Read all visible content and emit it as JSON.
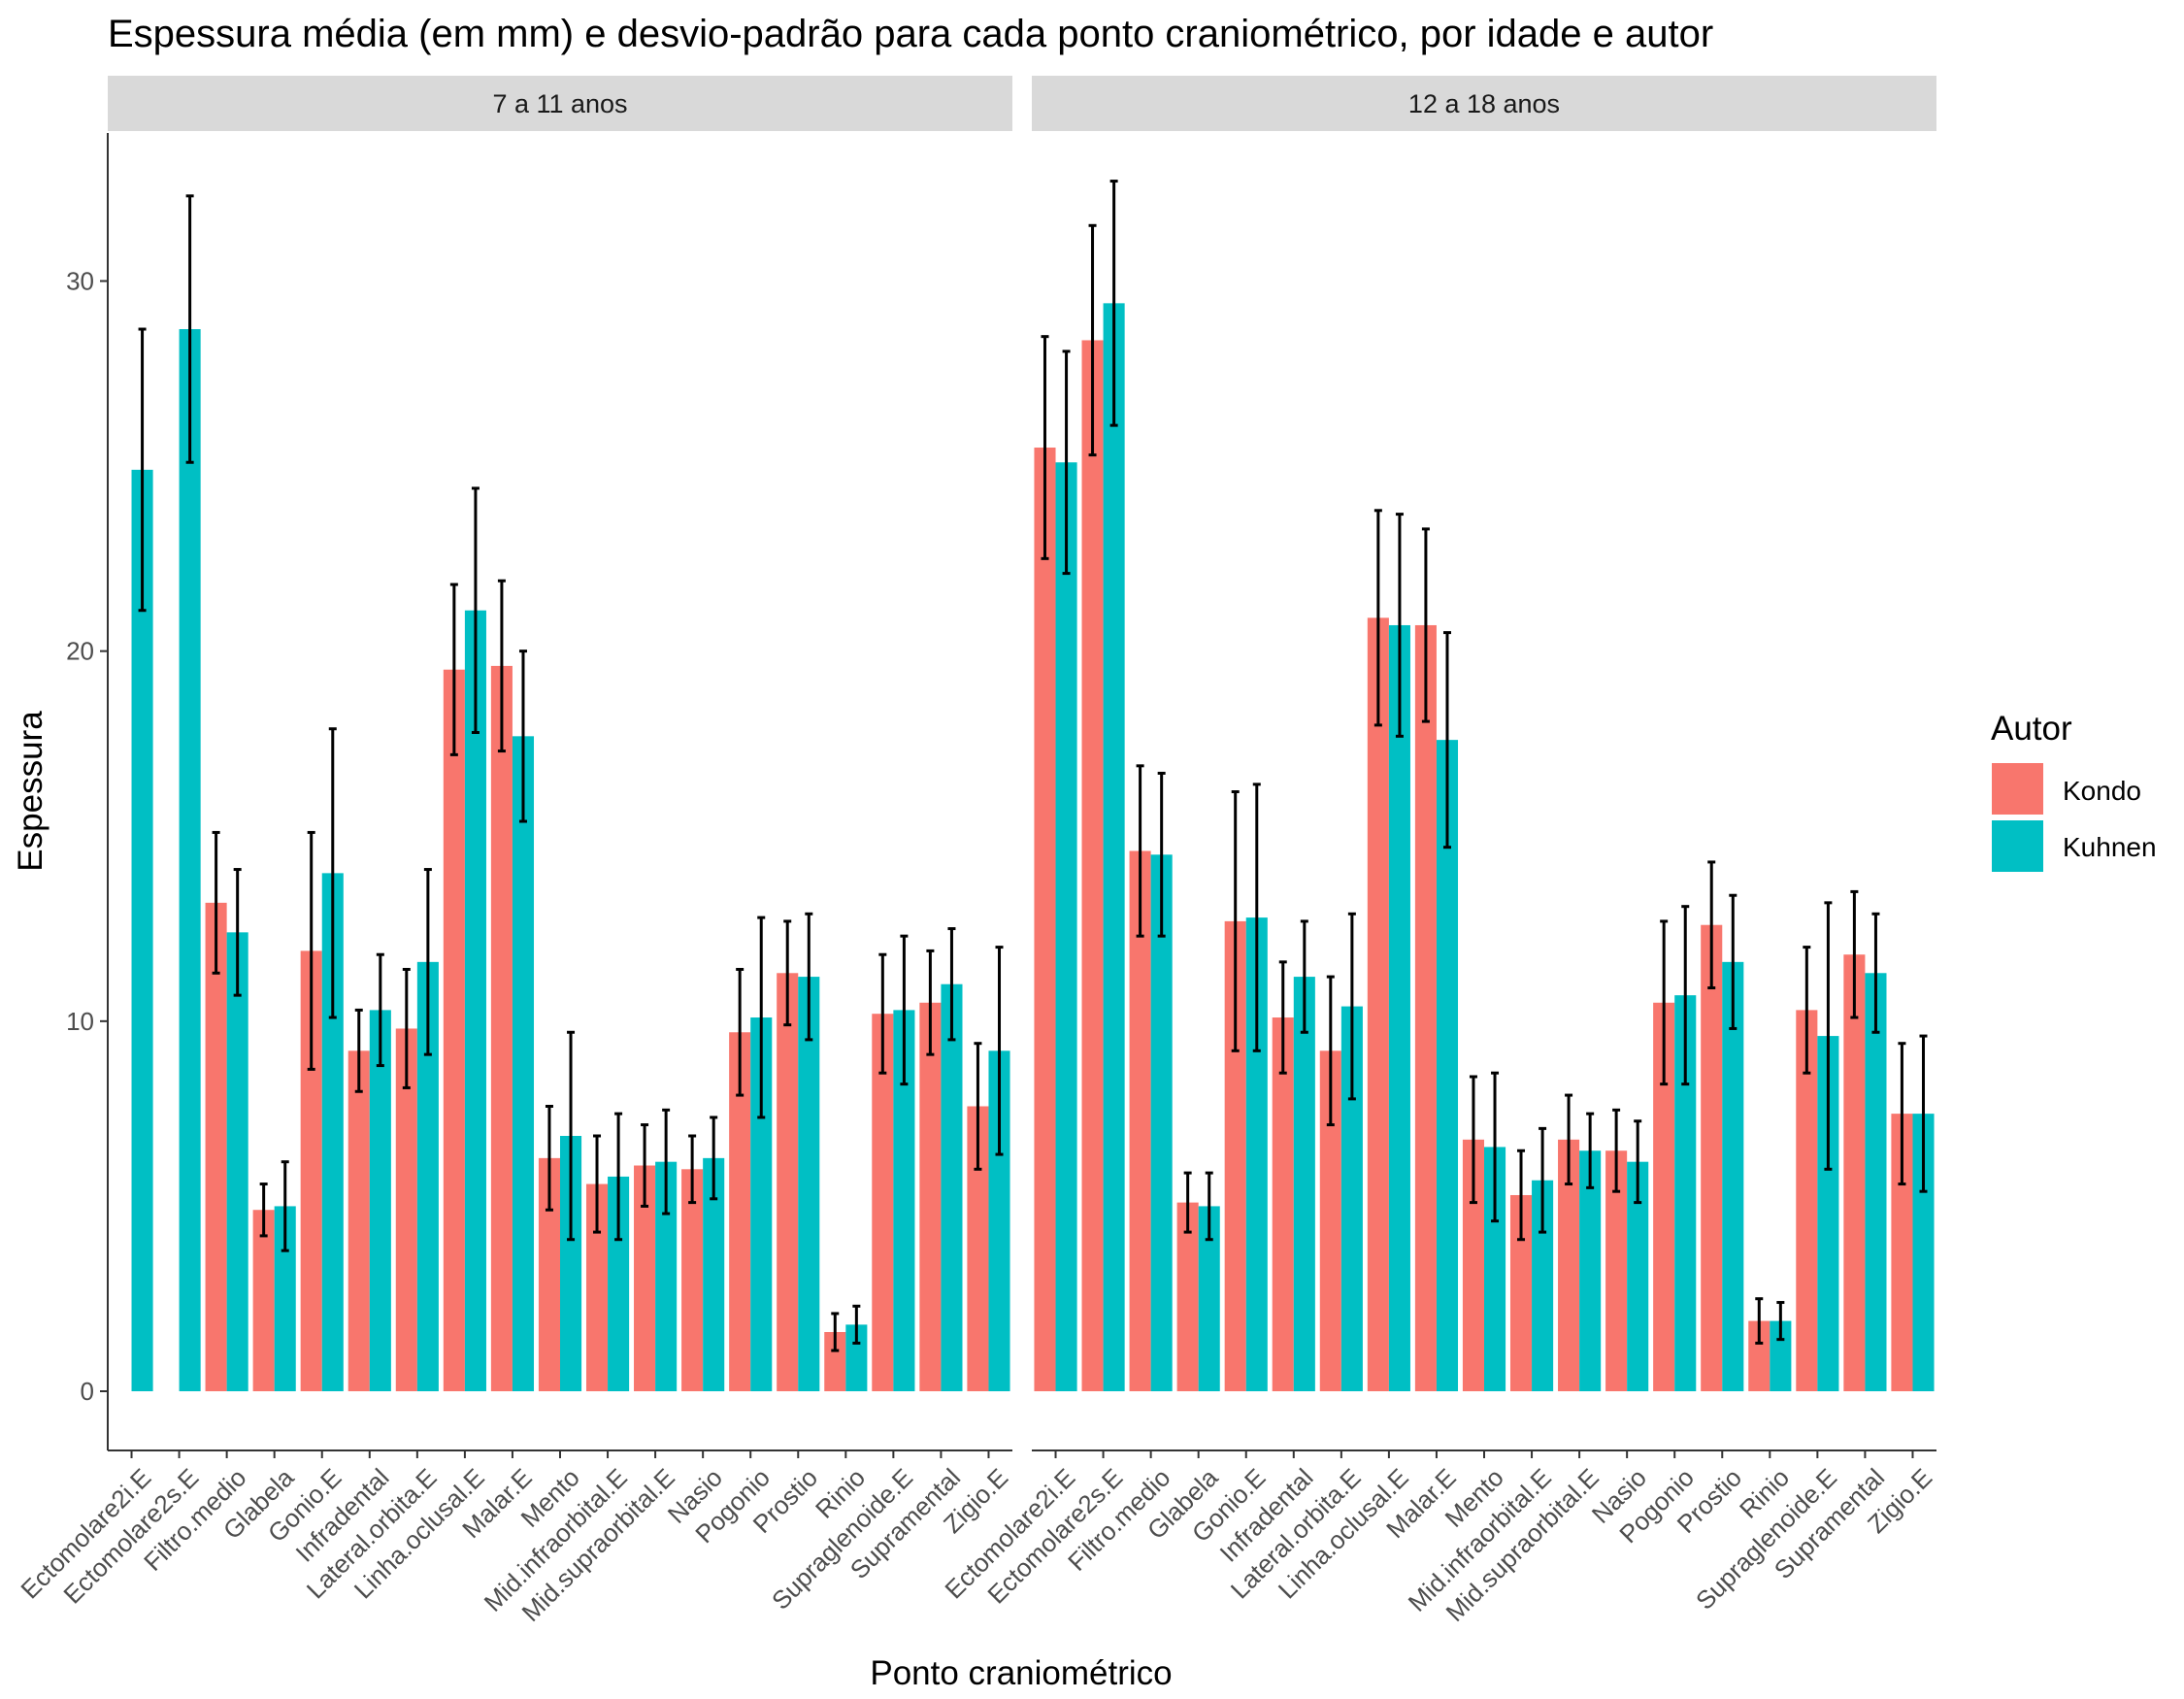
{
  "chart_data": {
    "type": "bar",
    "title": "Espessura média (em mm) e desvio-padrão para cada ponto craniométrico, por idade e autor",
    "xlabel": "Ponto craniométrico",
    "ylabel": "Espessura",
    "ylim": [
      -1.6,
      34
    ],
    "yticks": [
      0,
      10,
      20,
      30
    ],
    "grid": false,
    "legend": {
      "title": "Autor",
      "placement": "right"
    },
    "colors": {
      "Kondo": "#F8766D",
      "Kuhnen": "#00BFC4",
      "strip": "#D9D9D9",
      "axis": "#333333",
      "errorbar": "#000000"
    },
    "categories": [
      "Ectomolare2i.E",
      "Ectomolare2s.E",
      "Filtro.medio",
      "Glabela",
      "Gonio.E",
      "Infradental",
      "Lateral.orbita.E",
      "Linha.oclusal.E",
      "Malar.E",
      "Mento",
      "Mid.infraorbital.E",
      "Mid.supraorbital.E",
      "Nasio",
      "Pogonio",
      "Prostio",
      "Rinio",
      "Supraglenoide.E",
      "Supramental",
      "Zigio.E"
    ],
    "facets": [
      {
        "label": "7 a 11 anos",
        "series": [
          {
            "name": "Kondo",
            "values": [
              null,
              null,
              13.2,
              4.9,
              11.9,
              9.2,
              9.8,
              19.5,
              19.6,
              6.3,
              5.6,
              6.1,
              6.0,
              9.7,
              11.3,
              1.6,
              10.2,
              10.5,
              7.7
            ],
            "sd": [
              null,
              null,
              1.9,
              0.7,
              3.2,
              1.1,
              1.6,
              2.3,
              2.3,
              1.4,
              1.3,
              1.1,
              0.9,
              1.7,
              1.4,
              0.5,
              1.6,
              1.4,
              1.7
            ]
          },
          {
            "name": "Kuhnen",
            "values": [
              24.9,
              28.7,
              12.4,
              5.0,
              14.0,
              10.3,
              11.6,
              21.1,
              17.7,
              6.9,
              5.8,
              6.2,
              6.3,
              10.1,
              11.2,
              1.8,
              10.3,
              11.0,
              9.2
            ],
            "sd": [
              3.8,
              3.6,
              1.7,
              1.2,
              3.9,
              1.5,
              2.5,
              3.3,
              2.3,
              2.8,
              1.7,
              1.4,
              1.1,
              2.7,
              1.7,
              0.5,
              2.0,
              1.5,
              2.8
            ]
          }
        ]
      },
      {
        "label": "12 a 18 anos",
        "series": [
          {
            "name": "Kondo",
            "values": [
              25.5,
              28.4,
              14.6,
              5.1,
              12.7,
              10.1,
              9.2,
              20.9,
              20.7,
              6.8,
              5.3,
              6.8,
              6.5,
              10.5,
              12.6,
              1.9,
              10.3,
              11.8,
              7.5
            ],
            "sd": [
              3.0,
              3.1,
              2.3,
              0.8,
              3.5,
              1.5,
              2.0,
              2.9,
              2.6,
              1.7,
              1.2,
              1.2,
              1.1,
              2.2,
              1.7,
              0.6,
              1.7,
              1.7,
              1.9
            ]
          },
          {
            "name": "Kuhnen",
            "values": [
              25.1,
              29.4,
              14.5,
              5.0,
              12.8,
              11.2,
              10.4,
              20.7,
              17.6,
              6.6,
              5.7,
              6.5,
              6.2,
              10.7,
              11.6,
              1.9,
              9.6,
              11.3,
              7.5
            ],
            "sd": [
              3.0,
              3.3,
              2.2,
              0.9,
              3.6,
              1.5,
              2.5,
              3.0,
              2.9,
              2.0,
              1.4,
              1.0,
              1.1,
              2.4,
              1.8,
              0.5,
              3.6,
              1.6,
              2.1
            ]
          }
        ]
      }
    ]
  }
}
